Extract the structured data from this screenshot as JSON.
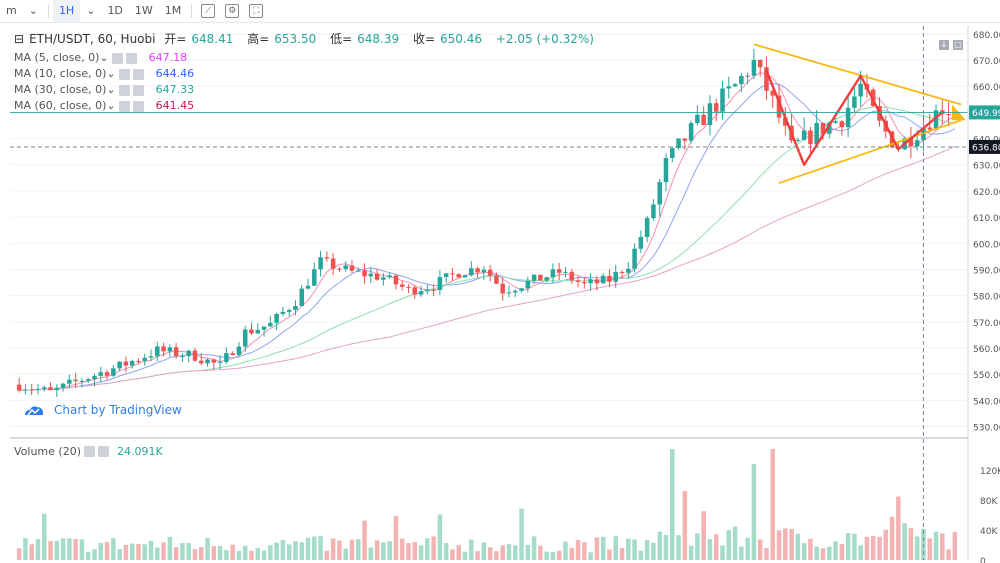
{
  "toolbar": {
    "interval_menu": "m",
    "active_interval": "1H",
    "intervals": [
      "1D",
      "1W",
      "1M"
    ]
  },
  "legend": {
    "symbol": "ETH/USDT, 60, Huobi",
    "open_label": "开=",
    "open": "648.41",
    "high_label": "高=",
    "high": "653.50",
    "low_label": "低=",
    "low": "648.39",
    "close_label": "收=",
    "close": "650.46",
    "change": "+2.05 (+0.32%)",
    "ma": [
      {
        "label": "MA (5, close, 0)",
        "value": "647.18",
        "color": "#e040fb"
      },
      {
        "label": "MA (10, close, 0)",
        "value": "644.46",
        "color": "#2962ff"
      },
      {
        "label": "MA (30, close, 0)",
        "value": "647.33",
        "color": "#26a69a"
      },
      {
        "label": "MA (60, close, 0)",
        "value": "641.45",
        "color": "#c2185b"
      }
    ]
  },
  "volume_legend": {
    "label": "Volume (20)",
    "value": "24.091K"
  },
  "watermark": "Chart by TradingView",
  "price_axis": {
    "ticks": [
      680,
      670,
      660,
      650,
      640,
      630,
      620,
      610,
      600,
      590,
      580,
      570,
      560,
      550,
      540,
      530
    ],
    "suffix": ".00"
  },
  "volume_axis": {
    "ticks": [
      "120K",
      "80K",
      "40K",
      "0"
    ]
  },
  "price_badges": {
    "last": "649.99",
    "crosshair": "636.80"
  },
  "colors": {
    "up": "#26a69a",
    "down": "#ef5350",
    "vol_up": "#a5dcc9",
    "vol_down": "#f3b3b3",
    "triangle": "#f9b814",
    "zigzag": "#f23d3d"
  },
  "chart_data": {
    "type": "candlestick",
    "ylim": [
      526,
      683
    ],
    "volume_ylim": [
      0,
      160000
    ],
    "seed": 7,
    "num_candles": 150,
    "waypoints": [
      [
        0,
        546
      ],
      [
        5,
        543
      ],
      [
        10,
        548
      ],
      [
        16,
        553
      ],
      [
        22,
        559
      ],
      [
        28,
        557
      ],
      [
        32,
        553
      ],
      [
        36,
        566
      ],
      [
        40,
        569
      ],
      [
        44,
        578
      ],
      [
        48,
        593
      ],
      [
        53,
        589
      ],
      [
        58,
        587
      ],
      [
        62,
        582
      ],
      [
        66,
        584
      ],
      [
        70,
        589
      ],
      [
        74,
        591
      ],
      [
        77,
        582
      ],
      [
        81,
        585
      ],
      [
        86,
        589
      ],
      [
        90,
        584
      ],
      [
        94,
        586
      ],
      [
        97,
        592
      ],
      [
        100,
        608
      ],
      [
        103,
        630
      ],
      [
        106,
        640
      ],
      [
        110,
        651
      ],
      [
        114,
        660
      ],
      [
        117,
        669
      ],
      [
        120,
        654
      ],
      [
        123,
        636
      ],
      [
        127,
        643
      ],
      [
        131,
        648
      ],
      [
        134,
        660
      ],
      [
        137,
        645
      ],
      [
        140,
        637
      ],
      [
        144,
        645
      ],
      [
        147,
        652
      ],
      [
        149,
        650
      ]
    ],
    "triangle": {
      "upper": [
        [
          117,
          676
        ],
        [
          150,
          653
        ]
      ],
      "lower": [
        [
          121,
          623
        ],
        [
          150,
          647
        ]
      ],
      "arrow_tip": [
        156,
        647
      ]
    },
    "zigzag": [
      [
        119,
        666
      ],
      [
        125,
        630
      ],
      [
        134,
        664
      ],
      [
        140,
        636
      ],
      [
        147,
        650
      ]
    ],
    "crosshair": {
      "price": 636.8,
      "index": 144
    }
  }
}
